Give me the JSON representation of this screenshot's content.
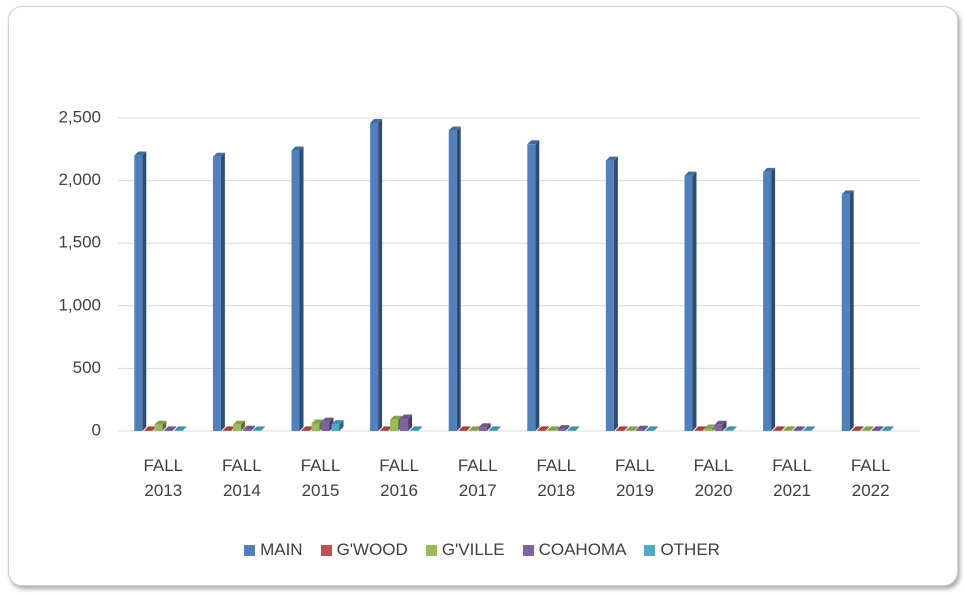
{
  "chart_data": {
    "type": "bar",
    "categories": [
      "FALL 2013",
      "FALL 2014",
      "FALL 2015",
      "FALL 2016",
      "FALL 2017",
      "FALL 2018",
      "FALL 2019",
      "FALL 2020",
      "FALL 2021",
      "FALL 2022"
    ],
    "series": [
      {
        "name": "MAIN",
        "color": "#4f81bd",
        "values": [
          2200,
          2190,
          2240,
          2460,
          2400,
          2290,
          2160,
          2040,
          2070,
          1890
        ]
      },
      {
        "name": "G'WOOD",
        "color": "#c0504d",
        "values": [
          5,
          5,
          5,
          5,
          5,
          5,
          5,
          5,
          5,
          5
        ]
      },
      {
        "name": "G'VILLE",
        "color": "#9bbb59",
        "values": [
          50,
          50,
          60,
          90,
          5,
          5,
          5,
          20,
          5,
          5
        ]
      },
      {
        "name": "COAHOMA",
        "color": "#8064a2",
        "values": [
          5,
          10,
          75,
          100,
          30,
          15,
          10,
          50,
          5,
          5
        ]
      },
      {
        "name": "OTHER",
        "color": "#4bacc6",
        "values": [
          5,
          5,
          55,
          5,
          5,
          5,
          5,
          5,
          5,
          5
        ]
      }
    ],
    "ylim": [
      0,
      2500
    ],
    "yticks": [
      0,
      500,
      {
        "value": 1000,
        "label": "1,000"
      },
      {
        "value": 1500,
        "label": "1,500"
      },
      {
        "value": 2000,
        "label": "2,000"
      },
      {
        "value": 2500,
        "label": "2,500"
      }
    ],
    "grid": true,
    "legend": "bottom"
  }
}
